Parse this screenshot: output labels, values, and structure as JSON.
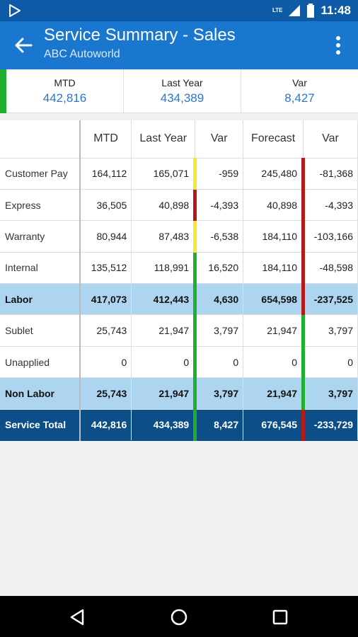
{
  "status_bar": {
    "time": "11:48",
    "network": "LTE"
  },
  "app_bar": {
    "title": "Service Summary - Sales",
    "subtitle": "ABC Autoworld"
  },
  "summary": [
    {
      "label": "MTD",
      "value": "442,816"
    },
    {
      "label": "Last Year",
      "value": "434,389"
    },
    {
      "label": "Var",
      "value": "8,427"
    }
  ],
  "table": {
    "headers": [
      "",
      "MTD",
      "Last Year",
      "Var",
      "Forecast",
      "Var"
    ],
    "rows": [
      {
        "label": "Customer Pay",
        "style": "normal",
        "cells": [
          "164,112",
          "165,071",
          "-959",
          "245,480",
          "-81,368"
        ],
        "indicators": [
          "yellow",
          "red"
        ]
      },
      {
        "label": "Express",
        "style": "normal",
        "cells": [
          "36,505",
          "40,898",
          "-4,393",
          "40,898",
          "-4,393"
        ],
        "indicators": [
          "red",
          "red"
        ]
      },
      {
        "label": "Warranty",
        "style": "normal",
        "cells": [
          "80,944",
          "87,483",
          "-6,538",
          "184,110",
          "-103,166"
        ],
        "indicators": [
          "yellow",
          "red"
        ]
      },
      {
        "label": "Internal",
        "style": "normal",
        "cells": [
          "135,512",
          "118,991",
          "16,520",
          "184,110",
          "-48,598"
        ],
        "indicators": [
          "green",
          "red"
        ]
      },
      {
        "label": "Labor",
        "style": "labor",
        "cells": [
          "417,073",
          "412,443",
          "4,630",
          "654,598",
          "-237,525"
        ],
        "indicators": [
          "green",
          "red"
        ]
      },
      {
        "label": "Sublet",
        "style": "normal",
        "cells": [
          "25,743",
          "21,947",
          "3,797",
          "21,947",
          "3,797"
        ],
        "indicators": [
          "green",
          "green"
        ]
      },
      {
        "label": "Unapplied",
        "style": "normal",
        "cells": [
          "0",
          "0",
          "0",
          "0",
          "0"
        ],
        "indicators": [
          "green",
          "green"
        ]
      },
      {
        "label": "Non Labor",
        "style": "nonlabor",
        "cells": [
          "25,743",
          "21,947",
          "3,797",
          "21,947",
          "3,797"
        ],
        "indicators": [
          "green",
          "green"
        ]
      },
      {
        "label": "Service Total",
        "style": "total",
        "cells": [
          "442,816",
          "434,389",
          "8,427",
          "676,545",
          "-233,729"
        ],
        "indicators": [
          "green",
          "red"
        ]
      }
    ]
  },
  "colors": {
    "primary": "#1a77d0",
    "status_bar": "#0d5aa7",
    "value_text": "#2b78c8",
    "summary_accent": "#1fae2f",
    "subtotal_row": "#aed5ef",
    "total_row": "#0c4f88",
    "indicator_green": "#1fae2f",
    "indicator_yellow": "#f4eb2a",
    "indicator_red": "#b31b1b"
  },
  "icons": {
    "status_left": "play-store-icon",
    "signal": "signal-icon",
    "battery": "battery-icon",
    "back": "arrow-back-icon",
    "menu": "more-vert-icon",
    "nav": [
      "back-triangle-icon",
      "home-circle-icon",
      "recents-square-icon"
    ]
  }
}
